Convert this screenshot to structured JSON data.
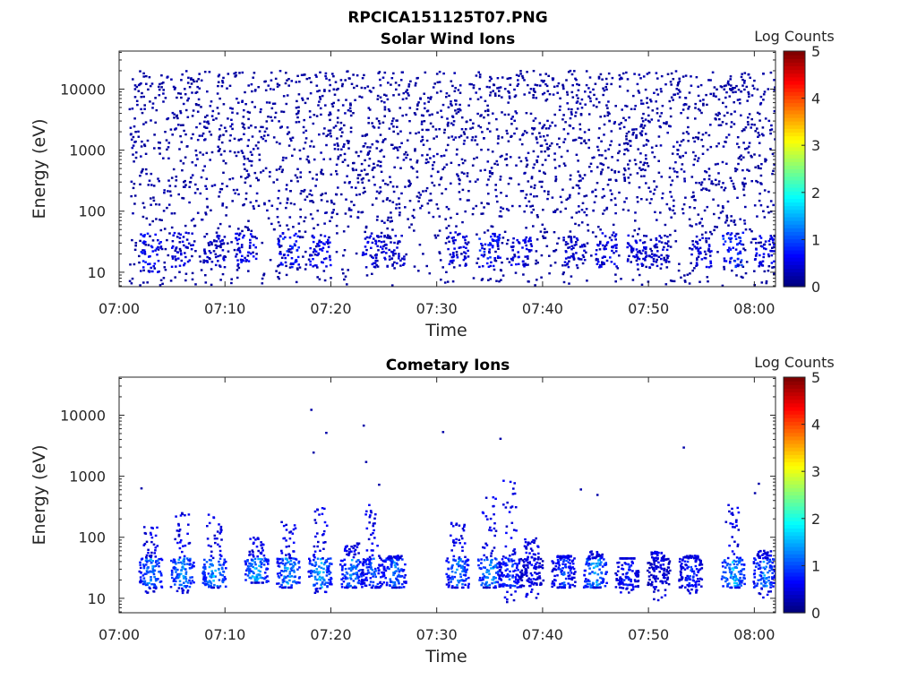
{
  "figure_title": "RPCICA151125T07.PNG",
  "colors": {
    "colormap": "jet",
    "axis": "#262626",
    "background": "#ffffff"
  },
  "chart_data": [
    {
      "type": "heatmap",
      "title": "Solar Wind Ions",
      "xlabel": "Time",
      "ylabel": "Energy (eV)",
      "xlim": [
        "07:00",
        "08:02"
      ],
      "xticks": [
        "07:00",
        "07:10",
        "07:20",
        "07:30",
        "07:40",
        "07:50",
        "08:00"
      ],
      "yscale": "log",
      "ylim": [
        5.8,
        42000
      ],
      "yticks": [
        "10",
        "100",
        "1000",
        "10000"
      ],
      "colorbar": {
        "label": "Log Counts",
        "range": [
          0,
          5
        ],
        "ticks": [
          "0",
          "1",
          "2",
          "3",
          "4",
          "5"
        ]
      },
      "low_energy_bursts": [
        {
          "time": "07:03",
          "energy_range": [
            10,
            45
          ],
          "level": 0.8
        },
        {
          "time": "07:06",
          "energy_range": [
            12,
            45
          ],
          "level": 0.6
        },
        {
          "time": "07:09",
          "energy_range": [
            12,
            40
          ],
          "level": 0.5
        },
        {
          "time": "07:12",
          "energy_range": [
            12,
            45
          ],
          "level": 0.8
        },
        {
          "time": "07:16",
          "energy_range": [
            12,
            45
          ],
          "level": 0.9
        },
        {
          "time": "07:19",
          "energy_range": [
            12,
            40
          ],
          "level": 0.7
        },
        {
          "time": "07:24",
          "energy_range": [
            12,
            45
          ],
          "level": 0.6
        },
        {
          "time": "07:26",
          "energy_range": [
            12,
            40
          ],
          "level": 0.5
        },
        {
          "time": "07:32",
          "energy_range": [
            12,
            45
          ],
          "level": 0.6
        },
        {
          "time": "07:35",
          "energy_range": [
            12,
            45
          ],
          "level": 0.9
        },
        {
          "time": "07:38",
          "energy_range": [
            12,
            40
          ],
          "level": 0.6
        },
        {
          "time": "07:43",
          "energy_range": [
            12,
            40
          ],
          "level": 0.5
        },
        {
          "time": "07:46",
          "energy_range": [
            12,
            45
          ],
          "level": 0.7
        },
        {
          "time": "07:49",
          "energy_range": [
            12,
            40
          ],
          "level": 0.6
        },
        {
          "time": "07:51",
          "energy_range": [
            12,
            40
          ],
          "level": 0.5
        },
        {
          "time": "07:55",
          "energy_range": [
            12,
            40
          ],
          "level": 0.6
        },
        {
          "time": "07:58",
          "energy_range": [
            12,
            45
          ],
          "level": 1.0
        },
        {
          "time": "08:01",
          "energy_range": [
            12,
            40
          ],
          "level": 0.7
        }
      ],
      "background_noise": {
        "energy_range": [
          60,
          20000
        ],
        "level": 0.1
      }
    },
    {
      "type": "heatmap",
      "title": "Cometary Ions",
      "xlabel": "Time",
      "ylabel": "Energy (eV)",
      "xlim": [
        "07:00",
        "08:02"
      ],
      "xticks": [
        "07:00",
        "07:10",
        "07:20",
        "07:30",
        "07:40",
        "07:50",
        "08:00"
      ],
      "yscale": "log",
      "ylim": [
        5.8,
        42000
      ],
      "yticks": [
        "10",
        "100",
        "1000",
        "10000"
      ],
      "colorbar": {
        "label": "Log Counts",
        "range": [
          0,
          5
        ],
        "ticks": [
          "0",
          "1",
          "2",
          "3",
          "4",
          "5"
        ]
      },
      "bursts": [
        {
          "time": "07:03",
          "energy_range": [
            12,
            180
          ],
          "peak_level": 1.7
        },
        {
          "time": "07:06",
          "energy_range": [
            12,
            260
          ],
          "peak_level": 1.8
        },
        {
          "time": "07:09",
          "energy_range": [
            15,
            240
          ],
          "peak_level": 1.9
        },
        {
          "time": "07:13",
          "energy_range": [
            18,
            100
          ],
          "peak_level": 1.9
        },
        {
          "time": "07:16",
          "energy_range": [
            15,
            180
          ],
          "peak_level": 1.8
        },
        {
          "time": "07:19",
          "energy_range": [
            12,
            320
          ],
          "peak_level": 1.9
        },
        {
          "time": "07:22",
          "energy_range": [
            15,
            80
          ],
          "peak_level": 1.6
        },
        {
          "time": "07:24",
          "energy_range": [
            15,
            350
          ],
          "peak_level": 1.3
        },
        {
          "time": "07:26",
          "energy_range": [
            15,
            50
          ],
          "peak_level": 1.5
        },
        {
          "time": "07:32",
          "energy_range": [
            15,
            180
          ],
          "peak_level": 1.6
        },
        {
          "time": "07:35",
          "energy_range": [
            15,
            450
          ],
          "peak_level": 1.8
        },
        {
          "time": "07:37",
          "energy_range": [
            8,
            900
          ],
          "peak_level": 1.2
        },
        {
          "time": "07:39",
          "energy_range": [
            10,
            100
          ],
          "peak_level": 0.8
        },
        {
          "time": "07:42",
          "energy_range": [
            15,
            50
          ],
          "peak_level": 1.2
        },
        {
          "time": "07:45",
          "energy_range": [
            15,
            60
          ],
          "peak_level": 1.8
        },
        {
          "time": "07:48",
          "energy_range": [
            12,
            40
          ],
          "peak_level": 1.0
        },
        {
          "time": "07:51",
          "energy_range": [
            8,
            60
          ],
          "peak_level": 0.7
        },
        {
          "time": "07:54",
          "energy_range": [
            12,
            50
          ],
          "peak_level": 1.0
        },
        {
          "time": "07:58",
          "energy_range": [
            15,
            350
          ],
          "peak_level": 1.9
        },
        {
          "time": "08:01",
          "energy_range": [
            10,
            60
          ],
          "peak_level": 1.6
        }
      ]
    }
  ]
}
